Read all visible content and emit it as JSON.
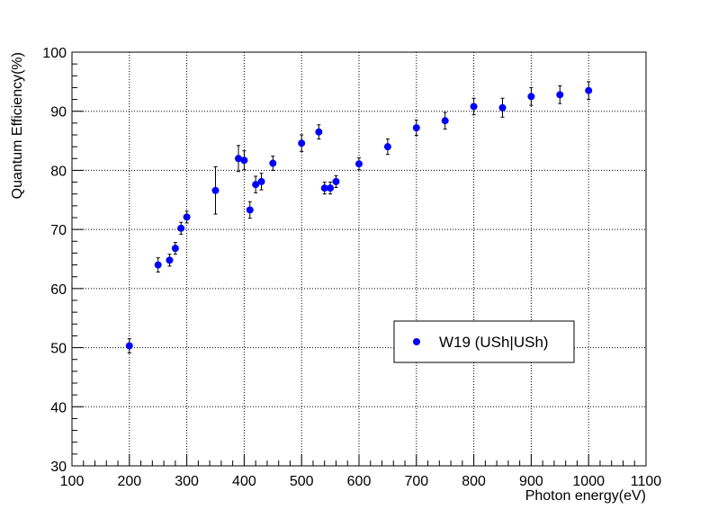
{
  "chart_data": {
    "type": "scatter",
    "title": "",
    "xlabel": "Photon energy(eV)",
    "ylabel": "Quantum Efficiency(%)",
    "xlim": [
      100,
      1100
    ],
    "ylim": [
      30,
      100
    ],
    "x_ticks": [
      100,
      200,
      300,
      400,
      500,
      600,
      700,
      800,
      900,
      1000,
      1100
    ],
    "y_ticks": [
      30,
      40,
      50,
      60,
      70,
      80,
      90,
      100
    ],
    "grid": true,
    "legend_position": "center-right",
    "series": [
      {
        "name": "W19 (USh|USh)",
        "color": "#0000ff",
        "marker": "circle",
        "error_bars": true,
        "points": [
          {
            "x": 200,
            "y": 50.3,
            "err": 1.2
          },
          {
            "x": 250,
            "y": 64.0,
            "err": 1.2
          },
          {
            "x": 270,
            "y": 64.8,
            "err": 1.0
          },
          {
            "x": 280,
            "y": 66.8,
            "err": 1.0
          },
          {
            "x": 290,
            "y": 70.2,
            "err": 1.0
          },
          {
            "x": 300,
            "y": 72.1,
            "err": 1.0
          },
          {
            "x": 350,
            "y": 76.6,
            "err": 4.0
          },
          {
            "x": 390,
            "y": 82.0,
            "err": 2.2
          },
          {
            "x": 400,
            "y": 81.7,
            "err": 1.6
          },
          {
            "x": 410,
            "y": 73.3,
            "err": 1.4
          },
          {
            "x": 420,
            "y": 77.6,
            "err": 1.4
          },
          {
            "x": 430,
            "y": 78.1,
            "err": 1.4
          },
          {
            "x": 450,
            "y": 81.2,
            "err": 1.2
          },
          {
            "x": 500,
            "y": 84.6,
            "err": 1.4
          },
          {
            "x": 530,
            "y": 86.5,
            "err": 1.2
          },
          {
            "x": 540,
            "y": 77.0,
            "err": 1.0
          },
          {
            "x": 550,
            "y": 77.0,
            "err": 1.0
          },
          {
            "x": 560,
            "y": 78.1,
            "err": 1.0
          },
          {
            "x": 600,
            "y": 81.1,
            "err": 1.0
          },
          {
            "x": 650,
            "y": 84.0,
            "err": 1.3
          },
          {
            "x": 700,
            "y": 87.2,
            "err": 1.3
          },
          {
            "x": 750,
            "y": 88.4,
            "err": 1.4
          },
          {
            "x": 800,
            "y": 90.8,
            "err": 1.4
          },
          {
            "x": 850,
            "y": 90.6,
            "err": 1.6
          },
          {
            "x": 900,
            "y": 92.5,
            "err": 1.5
          },
          {
            "x": 950,
            "y": 92.8,
            "err": 1.5
          },
          {
            "x": 1000,
            "y": 93.5,
            "err": 1.5
          }
        ]
      }
    ]
  }
}
